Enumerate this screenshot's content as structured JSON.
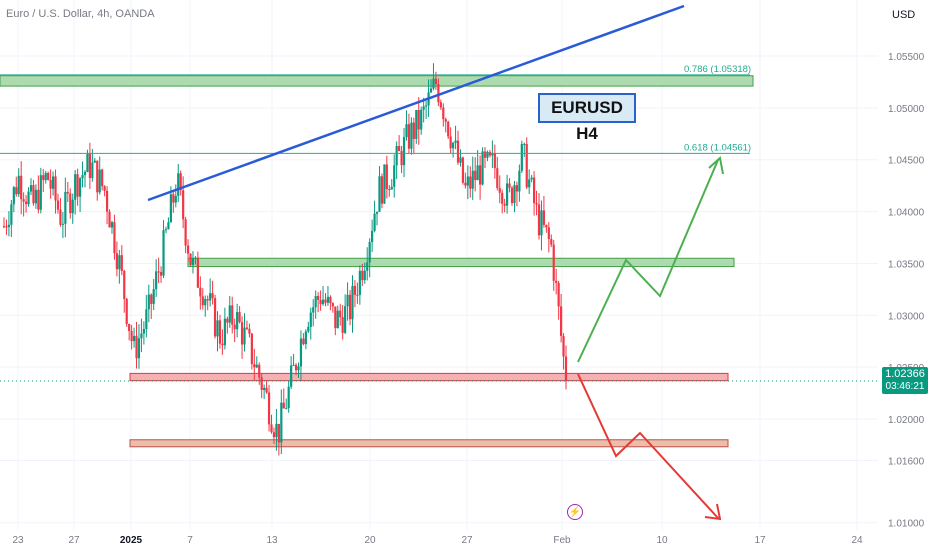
{
  "header": {
    "symbol_title": "Euro / U.S. Dollar, 4h, OANDA",
    "currency": "USD"
  },
  "annotation": {
    "label": "EURUSD H4"
  },
  "last_price": {
    "value": "1.02366",
    "countdown": "03:46:21"
  },
  "colors": {
    "bull": "#089981",
    "bear": "#f23645",
    "support": "#4caf50",
    "resistance": "#f44336",
    "trendline": "#2a5bd7",
    "up_path": "#4caf50",
    "down_path": "#e53935",
    "fib": "#22ab94"
  },
  "chart_data": {
    "type": "candlestick",
    "title": "Euro / U.S. Dollar, 4h, OANDA",
    "x_ticks": [
      "23",
      "27",
      "2025",
      "7",
      "13",
      "20",
      "27",
      "Feb",
      "10",
      "17",
      "24"
    ],
    "y_ticks": [
      "1.05500",
      "1.05000",
      "1.04500",
      "1.04000",
      "1.03500",
      "1.03000",
      "1.02500",
      "1.02000",
      "1.01600",
      "1.01000"
    ],
    "ylim": [
      1.0093,
      1.0604
    ],
    "fib_levels": [
      {
        "label": "0.786 (1.05318)",
        "value": 1.05318
      },
      {
        "label": "0.618 (1.04561)",
        "value": 1.04561
      }
    ],
    "zones": [
      {
        "kind": "resistance",
        "from": 1.0521,
        "to": 1.0531
      },
      {
        "kind": "support",
        "from": 1.0347,
        "to": 1.0355
      },
      {
        "kind": "support-red",
        "from": 1.0237,
        "to": 1.0244
      },
      {
        "kind": "support-red-low",
        "from": 1.0175,
        "to": 1.018
      }
    ],
    "last_close": 1.02366,
    "candles_close_path": [
      1.0386,
      1.0433,
      1.0405,
      1.0435,
      1.0393,
      1.043,
      1.0445,
      1.042,
      1.035,
      1.0265,
      1.03,
      1.036,
      1.043,
      1.035,
      1.032,
      1.028,
      1.03,
      1.027,
      1.023,
      1.0185,
      1.024,
      1.03,
      1.032,
      1.0295,
      1.0305,
      1.0355,
      1.042,
      1.044,
      1.047,
      1.049,
      1.0525,
      1.0475,
      1.042,
      1.044,
      1.0445,
      1.041,
      1.0455,
      1.0395,
      1.0365,
      1.0236
    ]
  }
}
